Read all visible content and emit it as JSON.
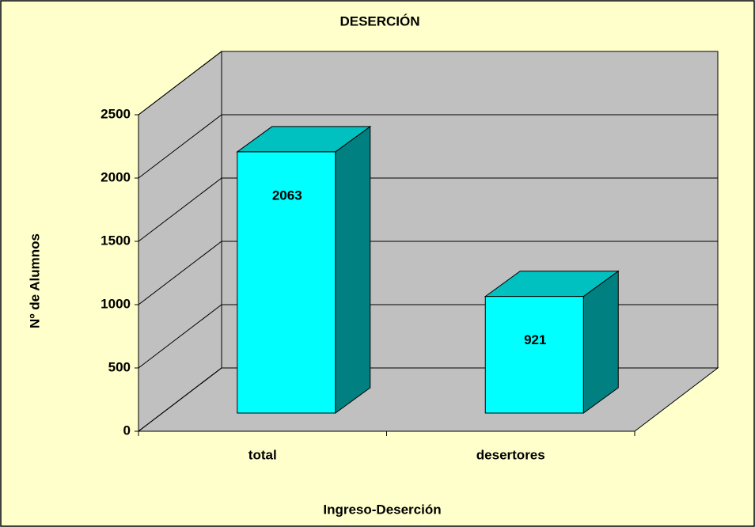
{
  "chart_data": {
    "type": "bar",
    "title": "DESERCIÓN",
    "categories": [
      "total",
      "desertores"
    ],
    "values": [
      2063,
      921
    ],
    "color": "#00ffff",
    "ylim": [
      0,
      2500
    ],
    "yticks": [
      0,
      500,
      1000,
      1500,
      2000,
      2500
    ],
    "grid": true,
    "x_label": "Ingreso-Deserción",
    "y_label": "Nº de Alumnos"
  }
}
